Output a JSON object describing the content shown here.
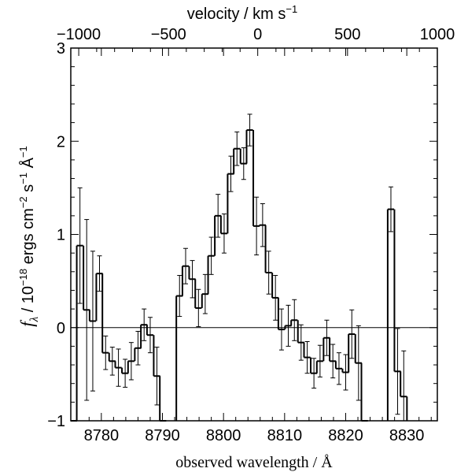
{
  "chart_data": {
    "type": "line",
    "style": "step",
    "xlabel": "observed wavelength / Å",
    "ylabel_parts": {
      "f": "f",
      "sub": "λ",
      "a": " / 10",
      "a_sup": "−18",
      "b": " ergs cm",
      "b_sup": "−2",
      "c": " s",
      "c_sup": "−1",
      "d": " Å",
      "d_sup": "−1"
    },
    "top_axis_label": {
      "main": "velocity / km s",
      "sup": "−1"
    },
    "xlim": [
      8775,
      8835
    ],
    "ylim": [
      -1,
      3
    ],
    "x_ticks": [
      8780,
      8790,
      8800,
      8810,
      8820,
      8830
    ],
    "y_ticks": [
      -1,
      0,
      1,
      2,
      3
    ],
    "top_ticks": [
      {
        "label": "−1000",
        "wavelength": 8776.3
      },
      {
        "label": "−500",
        "wavelength": 8791.0
      },
      {
        "label": "0",
        "wavelength": 8805.6
      },
      {
        "label": "500",
        "wavelength": 8820.3
      },
      {
        "label": "1000",
        "wavelength": 8835.0
      }
    ],
    "zero_line": 0,
    "bin_width": 1.05,
    "bins": [
      {
        "x": 8775.5,
        "y": -1.2,
        "err": 0
      },
      {
        "x": 8776.5,
        "y": 0.88,
        "err": 0.62
      },
      {
        "x": 8777.6,
        "y": 0.19,
        "err": 0.97
      },
      {
        "x": 8778.6,
        "y": 0.07,
        "err": 0.75
      },
      {
        "x": 8779.7,
        "y": 0.58,
        "err": 0.19
      },
      {
        "x": 8780.7,
        "y": -0.27,
        "err": 0.18
      },
      {
        "x": 8781.8,
        "y": -0.36,
        "err": 0.15
      },
      {
        "x": 8782.8,
        "y": -0.43,
        "err": 0.2
      },
      {
        "x": 8783.9,
        "y": -0.49,
        "err": 0.15
      },
      {
        "x": 8784.9,
        "y": -0.36,
        "err": 0.2
      },
      {
        "x": 8786.0,
        "y": -0.22,
        "err": 0.18
      },
      {
        "x": 8787.0,
        "y": 0.03,
        "err": 0.17
      },
      {
        "x": 8788.0,
        "y": -0.08,
        "err": 0.19
      },
      {
        "x": 8789.1,
        "y": -0.52,
        "err": 0.31
      },
      {
        "x": 8790.1,
        "y": -1.2,
        "err": 0
      },
      {
        "x": 8792.8,
        "y": 0.34,
        "err": 0.22
      },
      {
        "x": 8793.8,
        "y": 0.66,
        "err": 0.19
      },
      {
        "x": 8794.9,
        "y": 0.52,
        "err": 0.2
      },
      {
        "x": 8795.9,
        "y": 0.21,
        "err": 0.2
      },
      {
        "x": 8797.0,
        "y": 0.36,
        "err": 0.21
      },
      {
        "x": 8798.0,
        "y": 0.77,
        "err": 0.2
      },
      {
        "x": 8799.1,
        "y": 1.2,
        "err": 0.23
      },
      {
        "x": 8800.1,
        "y": 1.01,
        "err": 0.21
      },
      {
        "x": 8801.2,
        "y": 1.65,
        "err": 0.19
      },
      {
        "x": 8802.2,
        "y": 1.92,
        "err": 0.18
      },
      {
        "x": 8803.3,
        "y": 1.76,
        "err": 0.17
      },
      {
        "x": 8804.3,
        "y": 2.12,
        "err": 0.17
      },
      {
        "x": 8805.4,
        "y": 1.09,
        "err": 0.31
      },
      {
        "x": 8806.4,
        "y": 1.1,
        "err": 0.23
      },
      {
        "x": 8807.4,
        "y": 0.59,
        "err": 0.23
      },
      {
        "x": 8808.5,
        "y": 0.32,
        "err": 0.24
      },
      {
        "x": 8809.5,
        "y": -0.02,
        "err": 0.22
      },
      {
        "x": 8810.6,
        "y": 0.02,
        "err": 0.22
      },
      {
        "x": 8811.6,
        "y": 0.08,
        "err": 0.22
      },
      {
        "x": 8812.7,
        "y": -0.16,
        "err": 0.19
      },
      {
        "x": 8813.7,
        "y": -0.32,
        "err": 0.17
      },
      {
        "x": 8814.8,
        "y": -0.49,
        "err": 0.16
      },
      {
        "x": 8815.8,
        "y": -0.36,
        "err": 0.17
      },
      {
        "x": 8816.9,
        "y": -0.11,
        "err": 0.19
      },
      {
        "x": 8817.9,
        "y": -0.36,
        "err": 0.18
      },
      {
        "x": 8818.9,
        "y": -0.44,
        "err": 0.17
      },
      {
        "x": 8820.0,
        "y": -0.48,
        "err": 0.19
      },
      {
        "x": 8821.0,
        "y": -0.07,
        "err": 0.26
      },
      {
        "x": 8822.1,
        "y": -0.38,
        "err": 0.4
      },
      {
        "x": 8823.1,
        "y": -1.2,
        "err": 0
      },
      {
        "x": 8827.4,
        "y": 1.27,
        "err": 0.24
      },
      {
        "x": 8828.5,
        "y": -0.47,
        "err": 0.46
      },
      {
        "x": 8829.5,
        "y": -0.74,
        "err": 0.49
      }
    ]
  }
}
